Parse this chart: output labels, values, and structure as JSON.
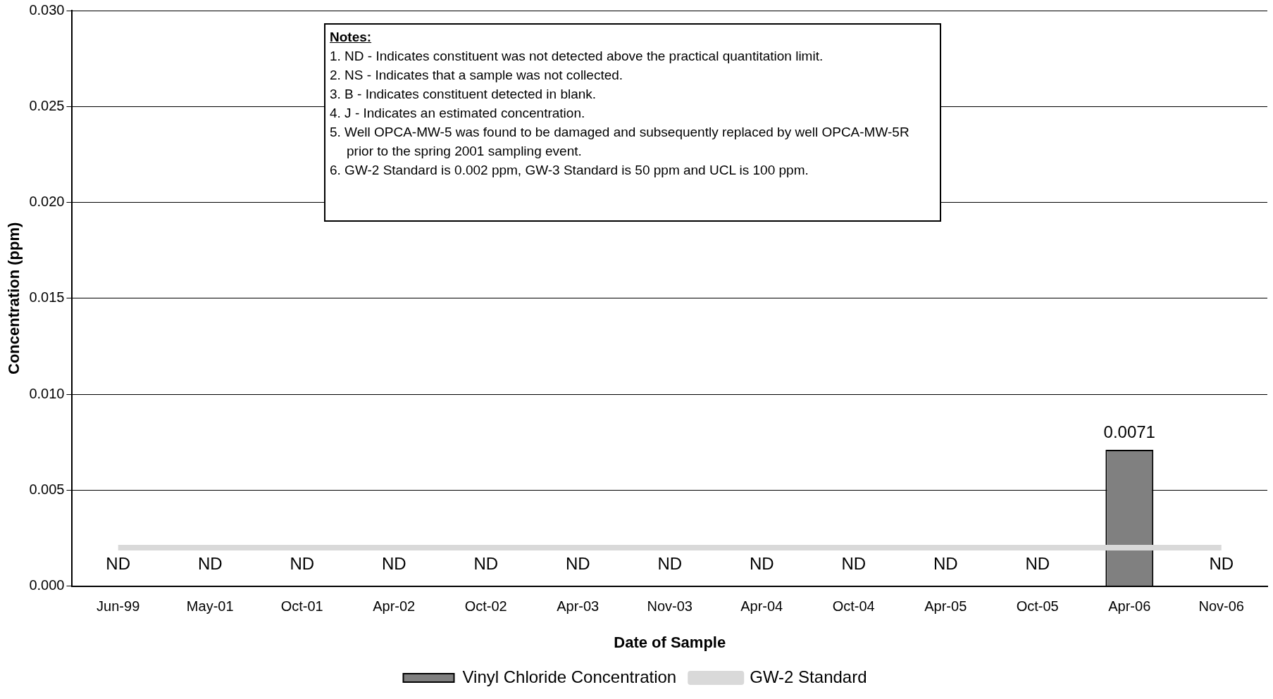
{
  "chart_data": {
    "type": "bar",
    "xlabel": "Date of Sample",
    "ylabel": "Concentration (ppm)",
    "categories": [
      "Jun-99",
      "May-01",
      "Oct-01",
      "Apr-02",
      "Oct-02",
      "Apr-03",
      "Nov-03",
      "Apr-04",
      "Oct-04",
      "Apr-05",
      "Oct-05",
      "Apr-06",
      "Nov-06"
    ],
    "series": [
      {
        "name": "Vinyl Chloride Concentration",
        "color": "#808080",
        "values": [
          null,
          null,
          null,
          null,
          null,
          null,
          null,
          null,
          null,
          null,
          null,
          0.0071,
          null
        ],
        "value_labels": [
          "ND",
          "ND",
          "ND",
          "ND",
          "ND",
          "ND",
          "ND",
          "ND",
          "ND",
          "ND",
          "ND",
          "0.0071",
          "ND"
        ]
      },
      {
        "name": "GW-2 Standard",
        "type": "line",
        "color": "#d9d9d9",
        "values": [
          0.002,
          0.002,
          0.002,
          0.002,
          0.002,
          0.002,
          0.002,
          0.002,
          0.002,
          0.002,
          0.002,
          0.002,
          0.002
        ]
      }
    ],
    "ylim": [
      0,
      0.03
    ],
    "yticks": [
      {
        "value": 0,
        "label": "0.000"
      },
      {
        "value": 0.005,
        "label": "0.005"
      },
      {
        "value": 0.01,
        "label": "0.010"
      },
      {
        "value": 0.015,
        "label": "0.015"
      },
      {
        "value": 0.02,
        "label": "0.020"
      },
      {
        "value": 0.025,
        "label": "0.025"
      },
      {
        "value": 0.03,
        "label": "0.030"
      }
    ],
    "grid": "y",
    "legend": "bottom",
    "marker": "none",
    "annotations": [
      "Notes:",
      "1. ND - Indicates constituent was not detected above the practical quantitation limit.",
      "2. NS - Indicates that a sample was not collected.",
      "3. B - Indicates constituent detected in blank.",
      "4. J - Indicates an estimated concentration.",
      "5. Well OPCA-MW-5 was found to be damaged and subsequently replaced by well OPCA-MW-5R prior to the spring 2001 sampling event.",
      "6. GW-2 Standard is 0.002 ppm, GW-3 Standard is 50 ppm and UCL is 100 ppm."
    ]
  }
}
